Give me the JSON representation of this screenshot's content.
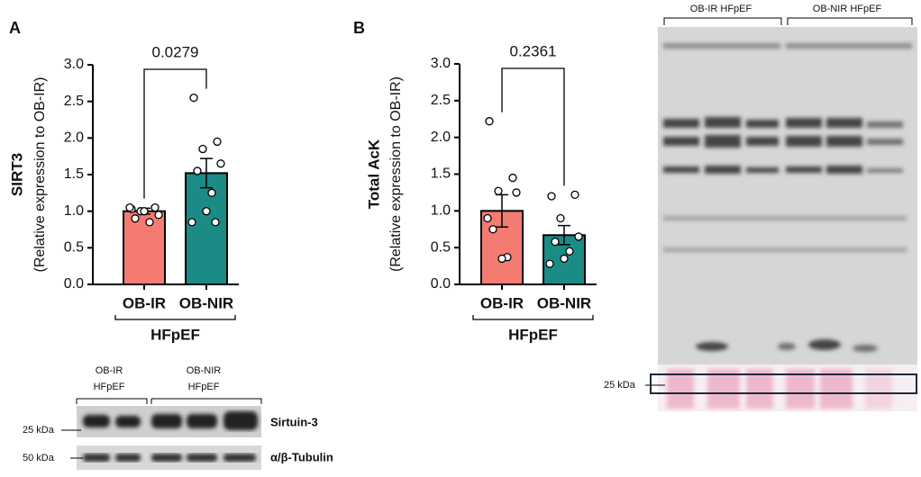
{
  "chart_data": [
    {
      "type": "bar",
      "panel": "A",
      "ylabel": "SIRT3",
      "ylabel_sub": "(Relative expression to OB-IR)",
      "categories": [
        "OB-IR",
        "OB-NIR"
      ],
      "group": "HFpEF",
      "values": [
        1.0,
        1.52
      ],
      "errors": [
        0.04,
        0.2
      ],
      "points": [
        [
          1.03,
          1.05,
          1.0,
          0.95,
          0.9,
          0.85,
          1.0,
          1.05
        ],
        [
          2.55,
          1.95,
          1.85,
          1.65,
          1.55,
          1.25,
          1.0,
          0.85,
          0.85
        ]
      ],
      "colors": [
        "#f47b72",
        "#1b8b86"
      ],
      "annotation": "0.0279",
      "ylim": [
        0,
        3
      ],
      "yticks": [
        {
          "value": 0,
          "label": "0.0"
        },
        {
          "value": 0.5,
          "label": "0.5"
        },
        {
          "value": 1,
          "label": "1.0"
        },
        {
          "value": 1.5,
          "label": "1.5"
        },
        {
          "value": 2,
          "label": "2.0"
        },
        {
          "value": 2.5,
          "label": "2.5"
        },
        {
          "value": 3,
          "label": "3.0"
        }
      ]
    },
    {
      "type": "bar",
      "panel": "B",
      "ylabel": "Total AcK",
      "ylabel_sub": "(Relative expression to OB-IR)",
      "categories": [
        "OB-IR",
        "OB-NIR"
      ],
      "group": "HFpEF",
      "values": [
        1.0,
        0.67
      ],
      "errors": [
        0.22,
        0.13
      ],
      "points": [
        [
          2.22,
          1.45,
          1.27,
          1.25,
          0.75,
          0.37,
          0.35,
          0.9
        ],
        [
          1.2,
          1.22,
          0.9,
          0.65,
          0.58,
          0.45,
          0.35,
          0.28
        ]
      ],
      "colors": [
        "#f47b72",
        "#1b8b86"
      ],
      "annotation": "0.2361",
      "ylim": [
        0,
        3
      ],
      "yticks": [
        {
          "value": 0,
          "label": "0.0"
        },
        {
          "value": 0.5,
          "label": "0.5"
        },
        {
          "value": 1,
          "label": "1.0"
        },
        {
          "value": 1.5,
          "label": "1.5"
        },
        {
          "value": 2,
          "label": "2.0"
        },
        {
          "value": 2.5,
          "label": "2.5"
        },
        {
          "value": 3,
          "label": "3.0"
        }
      ]
    }
  ],
  "blot_a": {
    "groups": [
      [
        "OB-IR",
        "HFpEF"
      ],
      [
        "OB-NIR",
        "HFpEF"
      ]
    ],
    "markers": [
      "25 kDa",
      "50 kDa"
    ],
    "proteins": [
      "Sirtuin-3",
      "α/β-Tubulin"
    ]
  },
  "blot_b": {
    "groups": [
      "OB-IR HFpEF",
      "OB-NIR HFpEF"
    ],
    "marker": "25 kDa"
  }
}
